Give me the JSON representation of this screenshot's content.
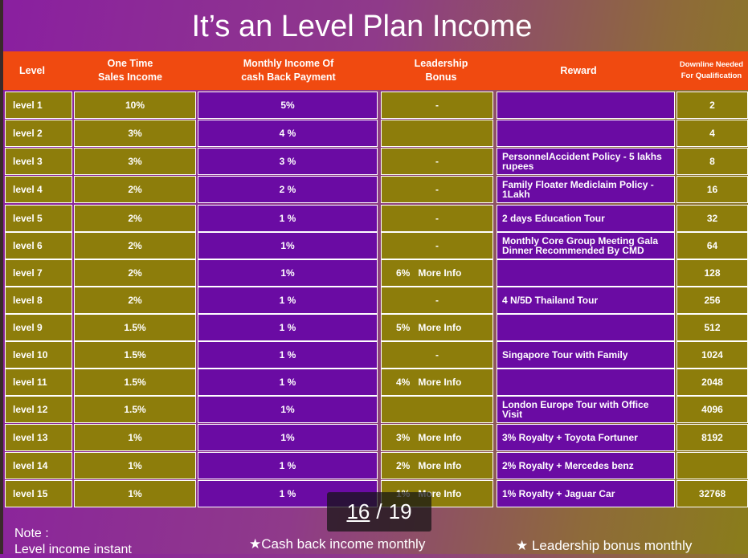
{
  "title": "It’s an Level Plan Income",
  "headers": {
    "level": "Level",
    "one_time": "One Time\nSales Income",
    "monthly": "Monthly Income Of\ncash Back Payment",
    "leadership": "Leadership\nBonus",
    "reward": "Reward",
    "downline": "Downline Needed\nFor Qualification"
  },
  "rows": [
    {
      "level": "level 1",
      "one_time": "10%",
      "monthly": "5%",
      "bonus": "-",
      "bonus_more": "",
      "reward": "",
      "downline": "2"
    },
    {
      "level": "level 2",
      "one_time": "3%",
      "monthly": "4 %",
      "bonus": "",
      "bonus_more": "",
      "reward": "",
      "downline": "4"
    },
    {
      "level": "level 3",
      "one_time": "3%",
      "monthly": "3 %",
      "bonus": "-",
      "bonus_more": "",
      "reward": "PersonnelAccident Policy - 5 lakhs\nrupees",
      "downline": "8"
    },
    {
      "level": "level 4",
      "one_time": "2%",
      "monthly": "2 %",
      "bonus": "-",
      "bonus_more": "",
      "reward": "Family Floater Mediclaim Policy -\n1Lakh",
      "downline": "16"
    },
    {
      "level": "level 5",
      "one_time": "2%",
      "monthly": "1 %",
      "bonus": "-",
      "bonus_more": "",
      "reward": "2 days Education Tour",
      "downline": "32"
    },
    {
      "level": "level 6",
      "one_time": "2%",
      "monthly": "1%",
      "bonus": "-",
      "bonus_more": "",
      "reward": "Monthly Core Group Meeting Gala\nDinner  Recommended By CMD",
      "downline": "64"
    },
    {
      "level": "level 7",
      "one_time": "2%",
      "monthly": "1%",
      "bonus": "6%",
      "bonus_more": "More Info",
      "reward": "",
      "downline": "128"
    },
    {
      "level": "level 8",
      "one_time": "2%",
      "monthly": "1 %",
      "bonus": "-",
      "bonus_more": "",
      "reward": "4 N/5D Thailand Tour",
      "downline": "256"
    },
    {
      "level": "level 9",
      "one_time": "1.5%",
      "monthly": "1 %",
      "bonus": "5%",
      "bonus_more": "More Info",
      "reward": "",
      "downline": "512"
    },
    {
      "level": "level 10",
      "one_time": "1.5%",
      "monthly": "1 %",
      "bonus": "-",
      "bonus_more": "",
      "reward": "Singapore Tour with Family",
      "downline": "1024"
    },
    {
      "level": "level 11",
      "one_time": "1.5%",
      "monthly": "1 %",
      "bonus": "4%",
      "bonus_more": "More Info",
      "reward": "",
      "downline": "2048"
    },
    {
      "level": "level 12",
      "one_time": "1.5%",
      "monthly": "1%",
      "bonus": "",
      "bonus_more": "",
      "reward": "London Europe Tour with Office\nVisit",
      "downline": "4096"
    },
    {
      "level": "level 13",
      "one_time": "1%",
      "monthly": "1%",
      "bonus": "3%",
      "bonus_more": "More Info",
      "reward": "3% Royalty + Toyota Fortuner",
      "downline": "8192"
    },
    {
      "level": "level 14",
      "one_time": "1%",
      "monthly": "1 %",
      "bonus": "2%",
      "bonus_more": "More Info",
      "reward": "2% Royalty + Mercedes benz",
      "downline": ""
    },
    {
      "level": "level 15",
      "one_time": "1%",
      "monthly": "1 %",
      "bonus": "1%",
      "bonus_more": "More Info",
      "reward": "1% Royalty + Jaguar Car",
      "downline": "32768"
    }
  ],
  "footer": {
    "note": "Note :\nLevel income instant",
    "cashback": "★Cash back income monthly",
    "leadership": "★ Leadership bonus monthly"
  },
  "pager": {
    "current": "16",
    "separator": "/",
    "total": "19"
  },
  "colors": {
    "header": "#f04a10",
    "olive": "#8d7d0b",
    "purple": "#6a0ba3"
  }
}
